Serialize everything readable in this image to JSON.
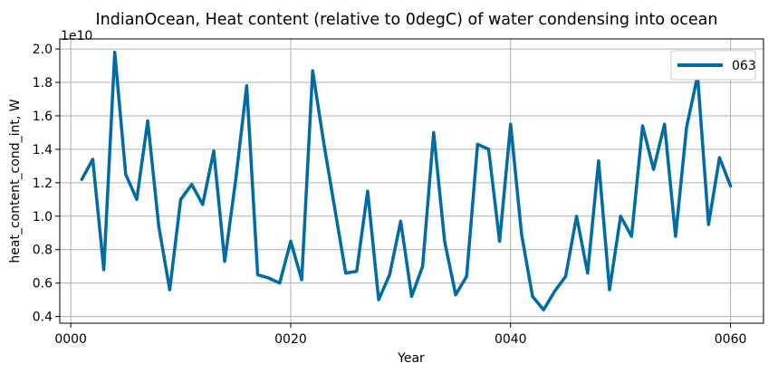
{
  "chart_data": {
    "type": "line",
    "title": "IndianOcean, Heat content (relative to 0degC) of water condensing into ocean",
    "xlabel": "Year",
    "ylabel": "heat_content_cond_int, W",
    "y_scale_label": "1e10",
    "xlim": [
      -1,
      63
    ],
    "ylim": [
      0.36,
      2.06
    ],
    "x_ticks": [
      0,
      20,
      40,
      60
    ],
    "x_tick_labels": [
      "0000",
      "0020",
      "0040",
      "0060"
    ],
    "y_ticks": [
      0.4,
      0.6,
      0.8,
      1.0,
      1.2,
      1.4,
      1.6,
      1.8,
      2.0
    ],
    "y_tick_labels": [
      "0.4",
      "0.6",
      "0.8",
      "1.0",
      "1.2",
      "1.4",
      "1.6",
      "1.8",
      "2.0"
    ],
    "grid": true,
    "legend_position": "top-right",
    "series": [
      {
        "name": "063",
        "color": "#006ba4",
        "x": [
          1,
          2,
          3,
          4,
          5,
          6,
          7,
          8,
          9,
          10,
          11,
          12,
          13,
          14,
          15,
          16,
          17,
          18,
          19,
          20,
          21,
          22,
          23,
          24,
          25,
          26,
          27,
          28,
          29,
          30,
          31,
          32,
          33,
          34,
          35,
          36,
          37,
          38,
          39,
          40,
          41,
          42,
          43,
          44,
          45,
          46,
          47,
          48,
          49,
          50,
          51,
          52,
          53,
          54,
          55,
          56,
          57,
          58,
          59,
          60
        ],
        "y": [
          1.22,
          1.34,
          0.68,
          1.98,
          1.25,
          1.1,
          1.57,
          0.94,
          0.56,
          1.1,
          1.19,
          1.07,
          1.39,
          0.73,
          1.22,
          1.78,
          0.65,
          0.63,
          0.6,
          0.85,
          0.62,
          1.87,
          1.44,
          1.05,
          0.66,
          0.67,
          1.15,
          0.5,
          0.65,
          0.97,
          0.52,
          0.7,
          1.5,
          0.85,
          0.53,
          0.64,
          1.43,
          1.4,
          0.85,
          1.55,
          0.89,
          0.52,
          0.44,
          0.55,
          0.64,
          1.0,
          0.66,
          1.33,
          0.56,
          1.0,
          0.88,
          1.54,
          1.28,
          1.55,
          0.88,
          1.53,
          1.84,
          0.95,
          1.35,
          1.18
        ]
      }
    ]
  }
}
